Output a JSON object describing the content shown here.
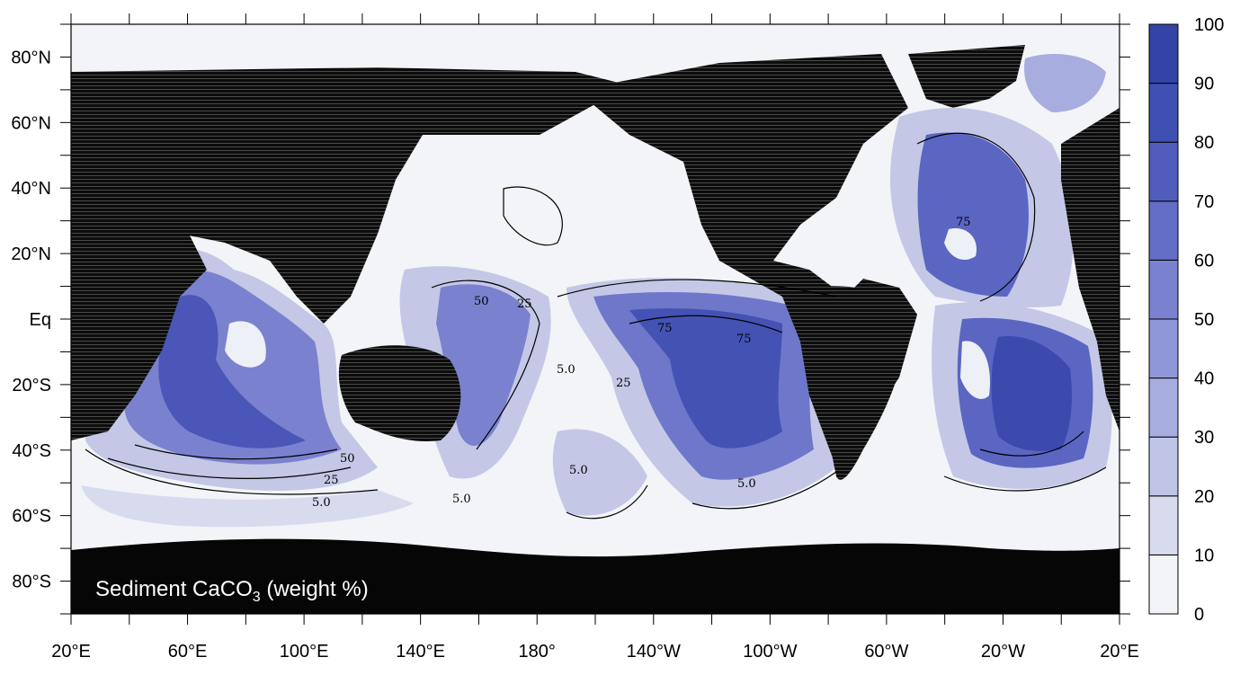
{
  "map_title_main": "Sediment CaCO",
  "map_title_sub": "3",
  "map_title_units": " (weight %)",
  "x_tick_labels": [
    "20°E",
    "60°E",
    "100°E",
    "140°E",
    "180°",
    "140°W",
    "100°W",
    "60°W",
    "20°W",
    "20°E"
  ],
  "y_tick_labels": [
    "80°N",
    "60°N",
    "40°N",
    "20°N",
    "Eq",
    "20°S",
    "40°S",
    "60°S",
    "80°S"
  ],
  "colorbar_labels": [
    "100",
    "90",
    "80",
    "70",
    "60",
    "50",
    "40",
    "30",
    "20",
    "10",
    "0"
  ],
  "colorbar_colors": [
    "#f3f4f8",
    "#d8dbee",
    "#c0c4e6",
    "#a8ade0",
    "#9097d8",
    "#7a82cf",
    "#646ec7",
    "#515dbd",
    "#4050b2",
    "#3443a8"
  ],
  "contour_labels": [
    {
      "text": "50"
    },
    {
      "text": "25"
    },
    {
      "text": "75"
    },
    {
      "text": "75"
    },
    {
      "text": "5.0"
    },
    {
      "text": "25"
    },
    {
      "text": "5.0"
    },
    {
      "text": "75"
    },
    {
      "text": "50"
    },
    {
      "text": "25"
    },
    {
      "text": "5.0"
    },
    {
      "text": "5.0"
    },
    {
      "text": "5.0"
    }
  ],
  "colors": {
    "land": "#111111",
    "ocean_low": "#f3f4f8",
    "frame": "#000000"
  }
}
